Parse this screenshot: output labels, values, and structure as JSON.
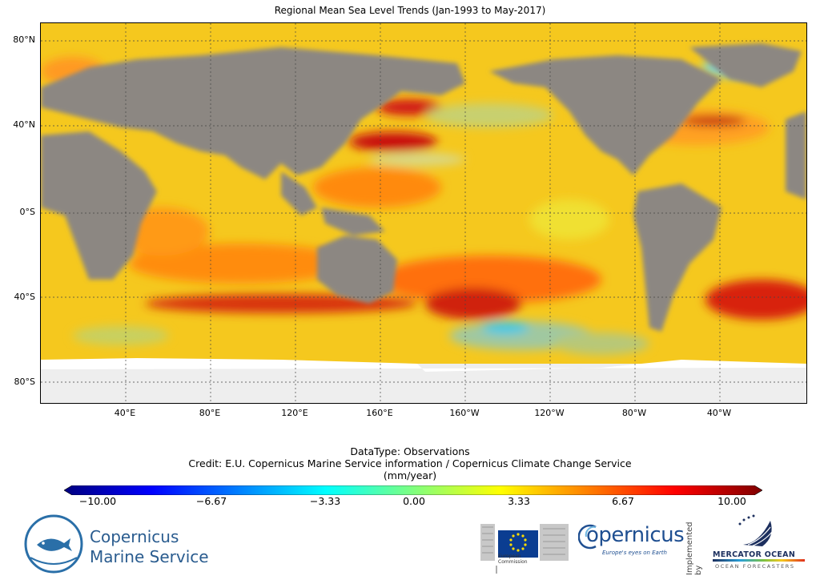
{
  "title": "Regional Mean Sea Level Trends (Jan-1993 to May-2017)",
  "map": {
    "y_ticks": [
      "80°N",
      "40°N",
      "0°S",
      "40°S",
      "80°S"
    ],
    "x_ticks": [
      "40°E",
      "80°E",
      "120°E",
      "160°E",
      "160°W",
      "120°W",
      "80°W",
      "40°W"
    ],
    "gridlines": true,
    "projection": "equirectangular",
    "colors": {
      "land": "#8c8782",
      "ice": "#f2f2f2",
      "ocean_typical": "#f5c81e"
    }
  },
  "meta": {
    "datatype": "DataType: Observations",
    "credit": "Credit: E.U. Copernicus Marine Service information / Copernicus Climate Change Service",
    "units": "(mm/year)"
  },
  "colorbar": {
    "min": -10.0,
    "max": 10.0,
    "ticks": [
      "−10.00",
      "−6.67",
      "−3.33",
      "0.00",
      "3.33",
      "6.67",
      "10.00"
    ],
    "colormap": "jet",
    "colors": [
      "#00007f",
      "#0000ff",
      "#007fff",
      "#00ffff",
      "#7fff7f",
      "#ffff00",
      "#ff7f00",
      "#ff0000",
      "#7f0000"
    ]
  },
  "logos": {
    "cmems_line1": "Copernicus",
    "cmems_line2": "Marine Service",
    "ec_line1": "European",
    "ec_line2": "Commission",
    "copernicus_word": "opernicus",
    "copernicus_tagline": "Europe's eyes on Earth",
    "implemented_by": "Implemented by",
    "mercator_title": "MERCATOR OCEAN",
    "mercator_sub": "OCEAN FORECASTERS"
  }
}
